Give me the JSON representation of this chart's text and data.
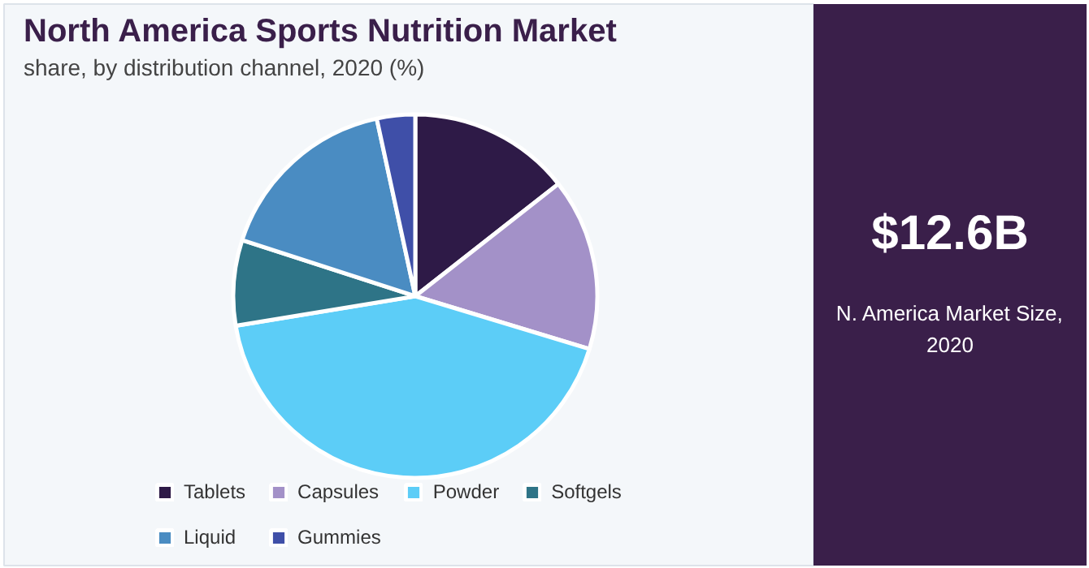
{
  "chart_data": {
    "type": "pie",
    "title": "North America Sports Nutrition Market",
    "subtitle": "share, by distribution channel, 2020 (%)",
    "categories": [
      "Tablets",
      "Capsules",
      "Powder",
      "Softgels",
      "Liquid",
      "Gummies"
    ],
    "values": [
      14.4,
      15.3,
      42.7,
      7.6,
      16.6,
      3.4
    ],
    "colors": [
      "#2e1a47",
      "#a391c8",
      "#5ccdf7",
      "#2e7487",
      "#4a8cc2",
      "#3f4fa8"
    ],
    "legend": "bottom",
    "annotations": [
      "$12.6B",
      "N. America Market Size, 2020"
    ]
  }
}
